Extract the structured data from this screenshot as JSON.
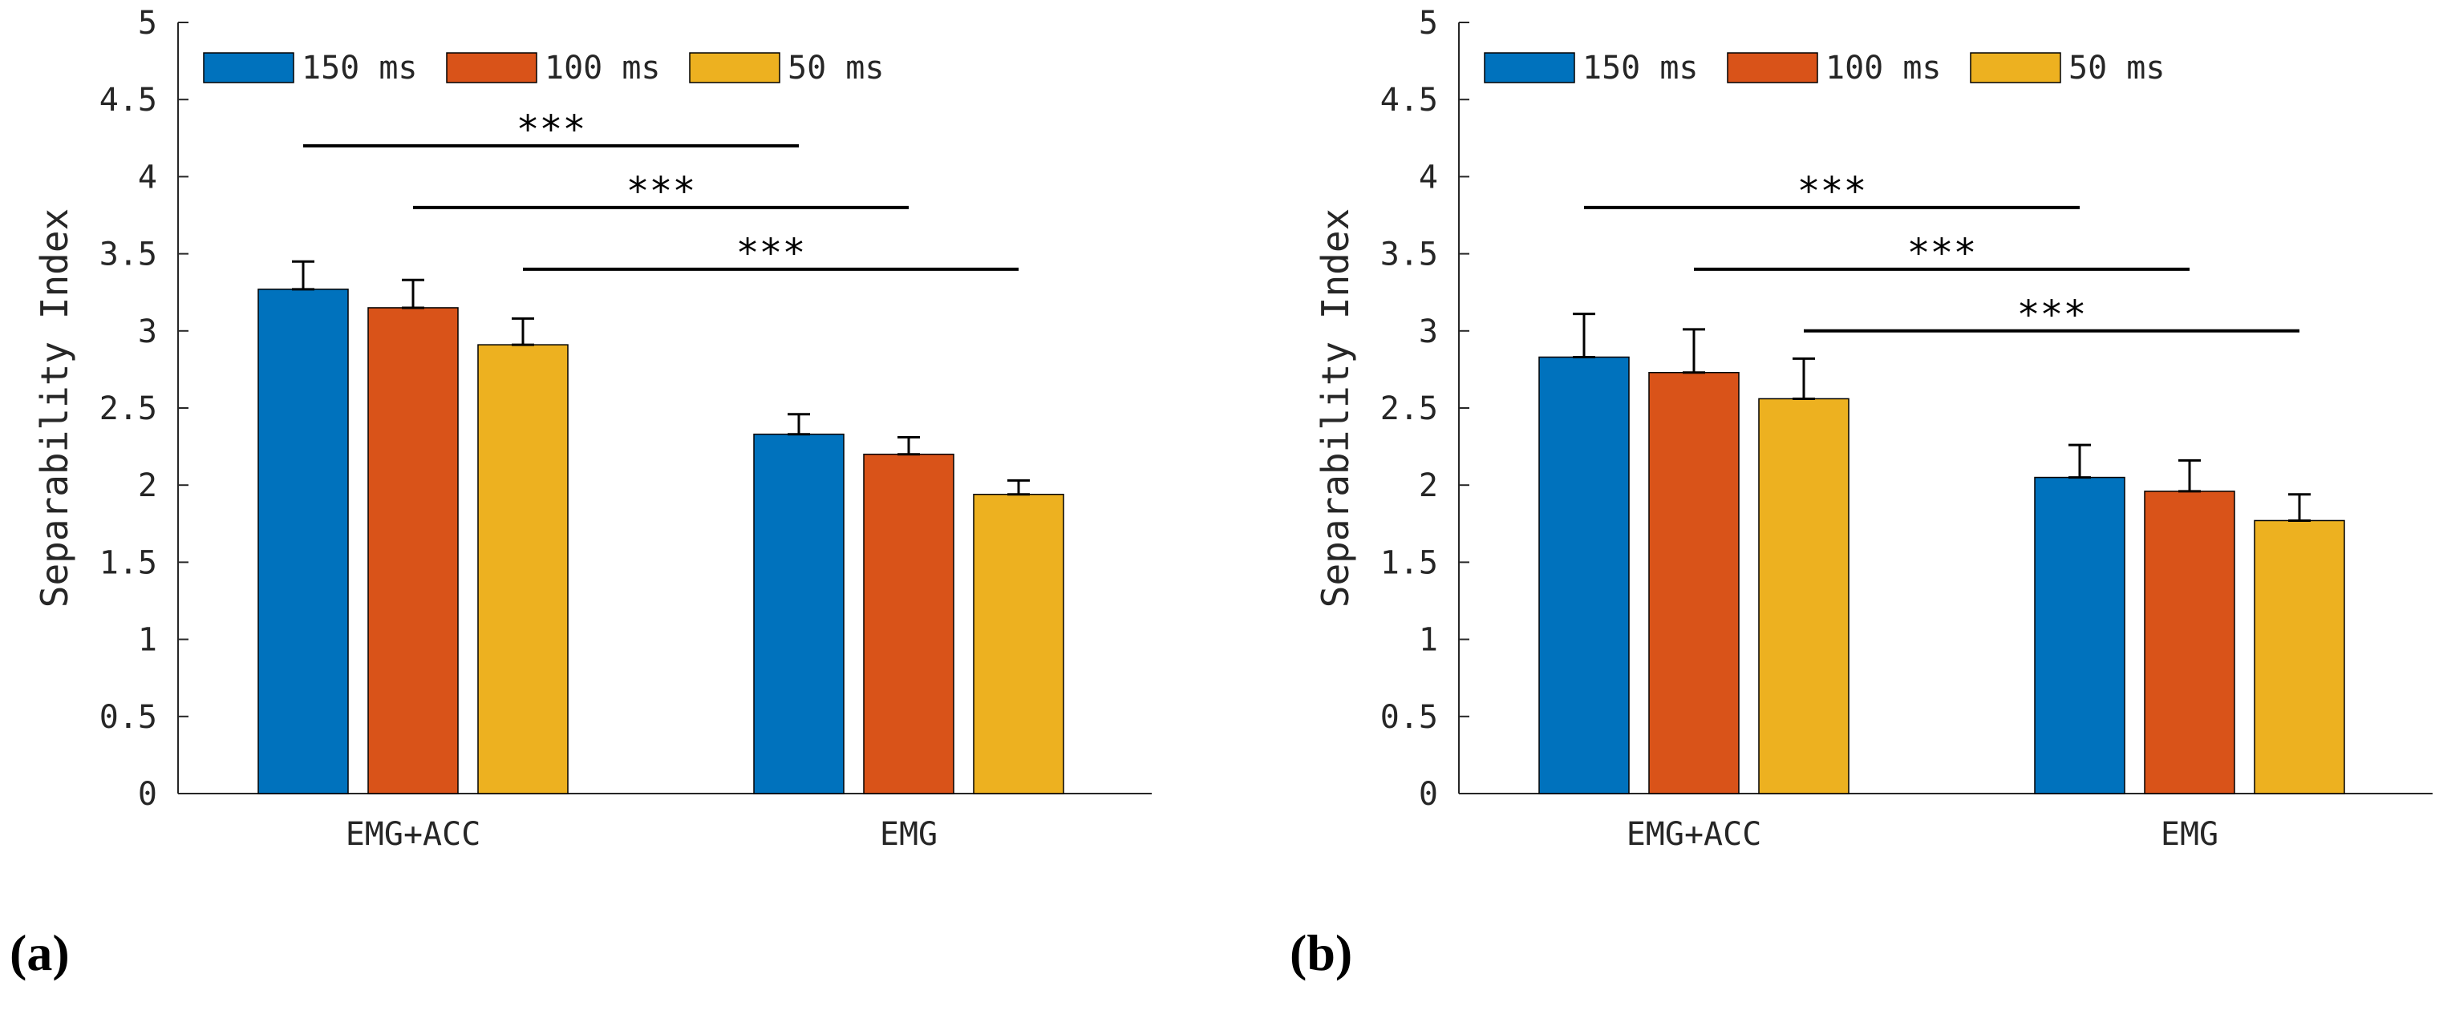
{
  "chart_data": [
    {
      "type": "bar",
      "panel_label": "(a)",
      "categories": [
        "EMG+ACC",
        "EMG"
      ],
      "series": [
        {
          "name": "150 ms",
          "color": "#0072BD",
          "values": [
            3.27,
            2.33
          ],
          "errors": [
            0.18,
            0.13
          ]
        },
        {
          "name": "100 ms",
          "color": "#D95319",
          "values": [
            3.15,
            2.2
          ],
          "errors": [
            0.18,
            0.11
          ]
        },
        {
          "name": "50 ms",
          "color": "#EDB120",
          "values": [
            2.91,
            1.94
          ],
          "errors": [
            0.17,
            0.09
          ]
        }
      ],
      "ylabel": "Separability Index",
      "ylim": [
        0,
        5
      ],
      "yticks": [
        "0",
        "0.5",
        "1",
        "1.5",
        "2",
        "2.5",
        "3",
        "3.5",
        "4",
        "4.5",
        "5"
      ],
      "legend_position": "top-left",
      "significance": [
        {
          "from": "EMG+ACC 150 ms",
          "to": "EMG 150 ms",
          "level": 4.2,
          "label": "***"
        },
        {
          "from": "EMG+ACC 100 ms",
          "to": "EMG 100 ms",
          "level": 3.8,
          "label": "***"
        },
        {
          "from": "EMG+ACC 50 ms",
          "to": "EMG 50 ms",
          "level": 3.4,
          "label": "***"
        }
      ]
    },
    {
      "type": "bar",
      "panel_label": "(b)",
      "categories": [
        "EMG+ACC",
        "EMG"
      ],
      "series": [
        {
          "name": "150 ms",
          "color": "#0072BD",
          "values": [
            2.83,
            2.05
          ],
          "errors": [
            0.28,
            0.21
          ]
        },
        {
          "name": "100 ms",
          "color": "#D95319",
          "values": [
            2.73,
            1.96
          ],
          "errors": [
            0.28,
            0.2
          ]
        },
        {
          "name": "50 ms",
          "color": "#EDB120",
          "values": [
            2.56,
            1.77
          ],
          "errors": [
            0.26,
            0.17
          ]
        }
      ],
      "ylabel": "Separability Index",
      "ylim": [
        0,
        5
      ],
      "yticks": [
        "0",
        "0.5",
        "1",
        "1.5",
        "2",
        "2.5",
        "3",
        "3.5",
        "4",
        "4.5",
        "5"
      ],
      "legend_position": "top-left",
      "significance": [
        {
          "from": "EMG+ACC 150 ms",
          "to": "EMG 150 ms",
          "level": 3.8,
          "label": "***"
        },
        {
          "from": "EMG+ACC 100 ms",
          "to": "EMG 100 ms",
          "level": 3.4,
          "label": "***"
        },
        {
          "from": "EMG+ACC 50 ms",
          "to": "EMG 50 ms",
          "level": 3.0,
          "label": "***"
        }
      ]
    }
  ]
}
